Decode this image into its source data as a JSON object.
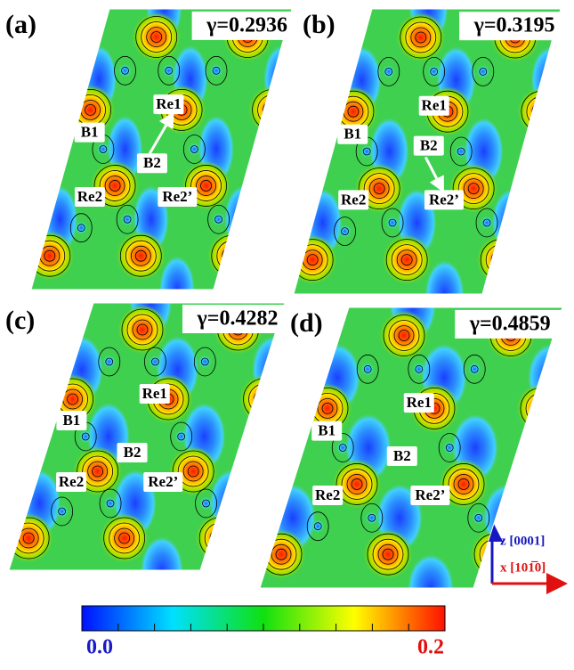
{
  "panels": [
    {
      "label": "(a)",
      "gamma": "γ=0.2936",
      "atoms": [
        "Re1",
        "B1",
        "B2",
        "Re2",
        "Re2’"
      ]
    },
    {
      "label": "(b)",
      "gamma": "γ=0.3195",
      "atoms": [
        "Re1",
        "B1",
        "B2",
        "Re2",
        "Re2’"
      ]
    },
    {
      "label": "(c)",
      "gamma": "γ=0.4282",
      "atoms": [
        "Re1",
        "B1",
        "B2",
        "Re2",
        "Re2’"
      ]
    },
    {
      "label": "(d)",
      "gamma": "γ=0.4859",
      "atoms": [
        "Re1",
        "B1",
        "B2",
        "Re2",
        "Re2’"
      ]
    }
  ],
  "colorbar": {
    "min_label": "0.0",
    "max_label": "0.2"
  },
  "axes": {
    "z": "z [0001]",
    "x": "x [101̅0]"
  }
}
